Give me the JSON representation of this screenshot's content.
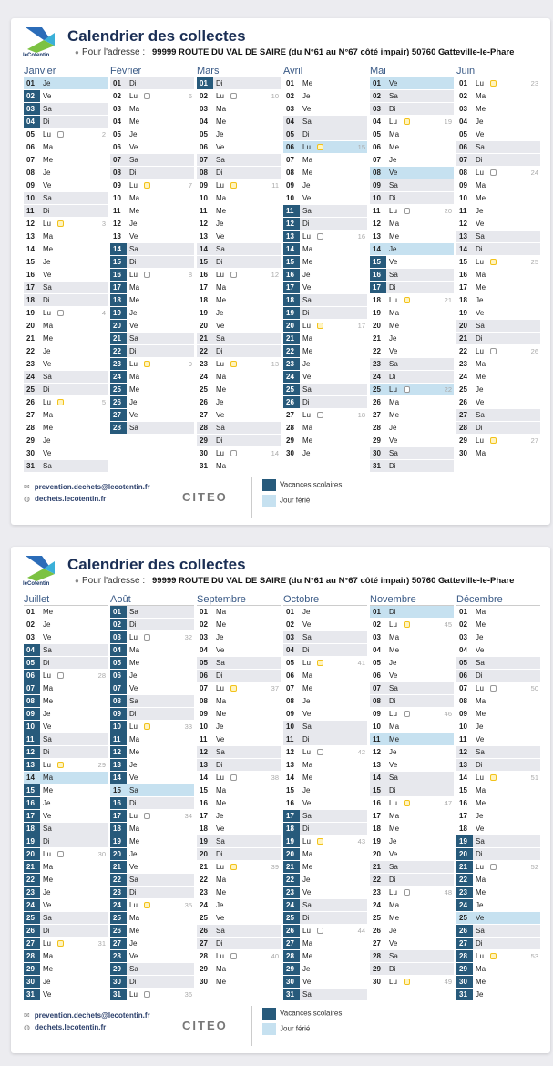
{
  "header": {
    "title": "Calendrier des collectes",
    "pour": "Pour l'adresse :",
    "address": "99999 ROUTE DU VAL DE SAIRE (du N°61 au N°67 côté impair) 50760 Gatteville-le-Phare",
    "logo_text": "leCotentin"
  },
  "footer": {
    "email": "prevention.dechets@lecotentin.fr",
    "site": "dechets.lecotentin.fr",
    "citeo": "CITEO",
    "legend_vacances": "Vacances scolaires",
    "legend_ferie": "Jour férié"
  },
  "colors": {
    "vacances": "#275a7b",
    "ferie": "#c6e1f0",
    "weekend": "#e7e8ed",
    "bin_gray": "#999999",
    "bin_yellow": "#f2c21a"
  },
  "day_numbers": [
    "01",
    "02",
    "03",
    "04",
    "05",
    "06",
    "07",
    "08",
    "09",
    "10",
    "11",
    "12",
    "13",
    "14",
    "15",
    "16",
    "17",
    "18",
    "19",
    "20",
    "21",
    "22",
    "23",
    "24",
    "25",
    "26",
    "27",
    "28",
    "29",
    "30",
    "31"
  ],
  "pages": [
    {
      "months": [
        {
          "name": "Janvier",
          "dows": "Je Ve Sa Di Lu Ma Me Je Ve Sa Di Lu Ma Me Je Ve Sa Di Lu Ma Me Je Ve Sa Di Lu Ma Me Je Ve Sa",
          "bins": {
            "5": [
              "gray",
              "2"
            ],
            "12": [
              "yellow",
              "3"
            ],
            "19": [
              "gray",
              "4"
            ],
            "26": [
              "yellow",
              "5"
            ]
          },
          "vacances": [
            [
              2,
              4
            ]
          ],
          "feries": [
            1
          ]
        },
        {
          "name": "Février",
          "dows": "Di Lu Ma Me Je Ve Sa Di Lu Ma Me Je Ve Sa Di Lu Ma Me Je Ve Sa Di Lu Ma Me Je Ve Sa",
          "bins": {
            "2": [
              "gray",
              "6"
            ],
            "9": [
              "yellow",
              "7"
            ],
            "16": [
              "gray",
              "8"
            ],
            "23": [
              "yellow",
              "9"
            ]
          },
          "vacances": [
            [
              14,
              28
            ]
          ],
          "feries": []
        },
        {
          "name": "Mars",
          "dows": "Di Lu Ma Me Je Ve Sa Di Lu Ma Me Je Ve Sa Di Lu Ma Me Je Ve Sa Di Lu Ma Me Je Ve Sa Di Lu Ma",
          "bins": {
            "2": [
              "gray",
              "10"
            ],
            "9": [
              "yellow",
              "11"
            ],
            "16": [
              "gray",
              "12"
            ],
            "23": [
              "yellow",
              "13"
            ],
            "30": [
              "gray",
              "14"
            ]
          },
          "vacances": [
            [
              1,
              1
            ]
          ],
          "feries": []
        },
        {
          "name": "Avril",
          "dows": "Me Je Ve Sa Di Lu Ma Me Je Ve Sa Di Lu Ma Me Je Ve Sa Di Lu Ma Me Je Ve Sa Di Lu Ma Me Je",
          "bins": {
            "6": [
              "yellow",
              "15"
            ],
            "13": [
              "gray",
              "16"
            ],
            "20": [
              "yellow",
              "17"
            ],
            "27": [
              "gray",
              "18"
            ]
          },
          "vacances": [
            [
              11,
              26
            ]
          ],
          "feries": [
            6
          ]
        },
        {
          "name": "Mai",
          "dows": "Ve Sa Di Lu Ma Me Je Ve Sa Di Lu Ma Me Je Ve Sa Di Lu Ma Me Je Ve Sa Di Lu Ma Me Je Ve Sa Di",
          "bins": {
            "4": [
              "yellow",
              "19"
            ],
            "11": [
              "gray",
              "20"
            ],
            "18": [
              "yellow",
              "21"
            ],
            "25": [
              "gray",
              "22"
            ]
          },
          "vacances": [
            [
              15,
              17
            ]
          ],
          "feries": [
            1,
            8,
            14,
            25
          ]
        },
        {
          "name": "Juin",
          "dows": "Lu Ma Me Je Ve Sa Di Lu Ma Me Je Ve Sa Di Lu Ma Me Je Ve Sa Di Lu Ma Me Je Ve Sa Di Lu Ma",
          "bins": {
            "1": [
              "yellow",
              "23"
            ],
            "8": [
              "gray",
              "24"
            ],
            "15": [
              "yellow",
              "25"
            ],
            "22": [
              "gray",
              "26"
            ],
            "29": [
              "yellow",
              "27"
            ]
          },
          "vacances": [],
          "feries": []
        }
      ]
    },
    {
      "months": [
        {
          "name": "Juillet",
          "dows": "Me Je Ve Sa Di Lu Ma Me Je Ve Sa Di Lu Ma Me Je Ve Sa Di Lu Ma Me Je Ve Sa Di Lu Ma Me Je Ve",
          "bins": {
            "6": [
              "gray",
              "28"
            ],
            "13": [
              "yellow",
              "29"
            ],
            "20": [
              "gray",
              "30"
            ],
            "27": [
              "yellow",
              "31"
            ]
          },
          "vacances": [
            [
              4,
              13
            ],
            [
              15,
              31
            ]
          ],
          "feries": [
            14
          ]
        },
        {
          "name": "Août",
          "dows": "Sa Di Lu Ma Me Je Ve Sa Di Lu Ma Me Je Ve Sa Di Lu Ma Me Je Ve Sa Di Lu Ma Me Je Ve Sa Di Lu",
          "bins": {
            "3": [
              "gray",
              "32"
            ],
            "10": [
              "yellow",
              "33"
            ],
            "17": [
              "gray",
              "34"
            ],
            "24": [
              "yellow",
              "35"
            ],
            "31": [
              "gray",
              "36"
            ]
          },
          "vacances": [
            [
              1,
              14
            ],
            [
              16,
              31
            ]
          ],
          "feries": [
            15
          ]
        },
        {
          "name": "Septembre",
          "dows": "Ma Me Je Ve Sa Di Lu Ma Me Je Ve Sa Di Lu Ma Me Je Ve Sa Di Lu Ma Me Je Ve Sa Di Lu Ma Me",
          "bins": {
            "7": [
              "yellow",
              "37"
            ],
            "14": [
              "gray",
              "38"
            ],
            "21": [
              "yellow",
              "39"
            ],
            "28": [
              "gray",
              "40"
            ]
          },
          "vacances": [],
          "feries": []
        },
        {
          "name": "Octobre",
          "dows": "Je Ve Sa Di Lu Ma Me Je Ve Sa Di Lu Ma Me Je Ve Sa Di Lu Ma Me Je Ve Sa Di Lu Ma Me Je Ve Sa",
          "bins": {
            "5": [
              "yellow",
              "41"
            ],
            "12": [
              "gray",
              "42"
            ],
            "19": [
              "yellow",
              "43"
            ],
            "26": [
              "gray",
              "44"
            ]
          },
          "vacances": [
            [
              17,
              31
            ]
          ],
          "feries": []
        },
        {
          "name": "Novembre",
          "dows": "Di Lu Ma Me Je Ve Sa Di Lu Ma Me Je Ve Sa Di Lu Ma Me Je Ve Sa Di Lu Ma Me Je Ve Sa Di Lu",
          "bins": {
            "2": [
              "yellow",
              "45"
            ],
            "9": [
              "gray",
              "46"
            ],
            "16": [
              "yellow",
              "47"
            ],
            "23": [
              "gray",
              "48"
            ],
            "30": [
              "yellow",
              "49"
            ]
          },
          "vacances": [],
          "feries": [
            1,
            11
          ]
        },
        {
          "name": "Décembre",
          "dows": "Ma Me Je Ve Sa Di Lu Ma Me Je Ve Sa Di Lu Ma Me Je Ve Sa Di Lu Ma Me Je Ve Sa Di Lu Ma Me Je",
          "bins": {
            "7": [
              "gray",
              "50"
            ],
            "14": [
              "yellow",
              "51"
            ],
            "21": [
              "gray",
              "52"
            ],
            "28": [
              "yellow",
              "53"
            ]
          },
          "vacances": [
            [
              19,
              24
            ],
            [
              26,
              31
            ]
          ],
          "feries": [
            25
          ]
        }
      ]
    }
  ]
}
